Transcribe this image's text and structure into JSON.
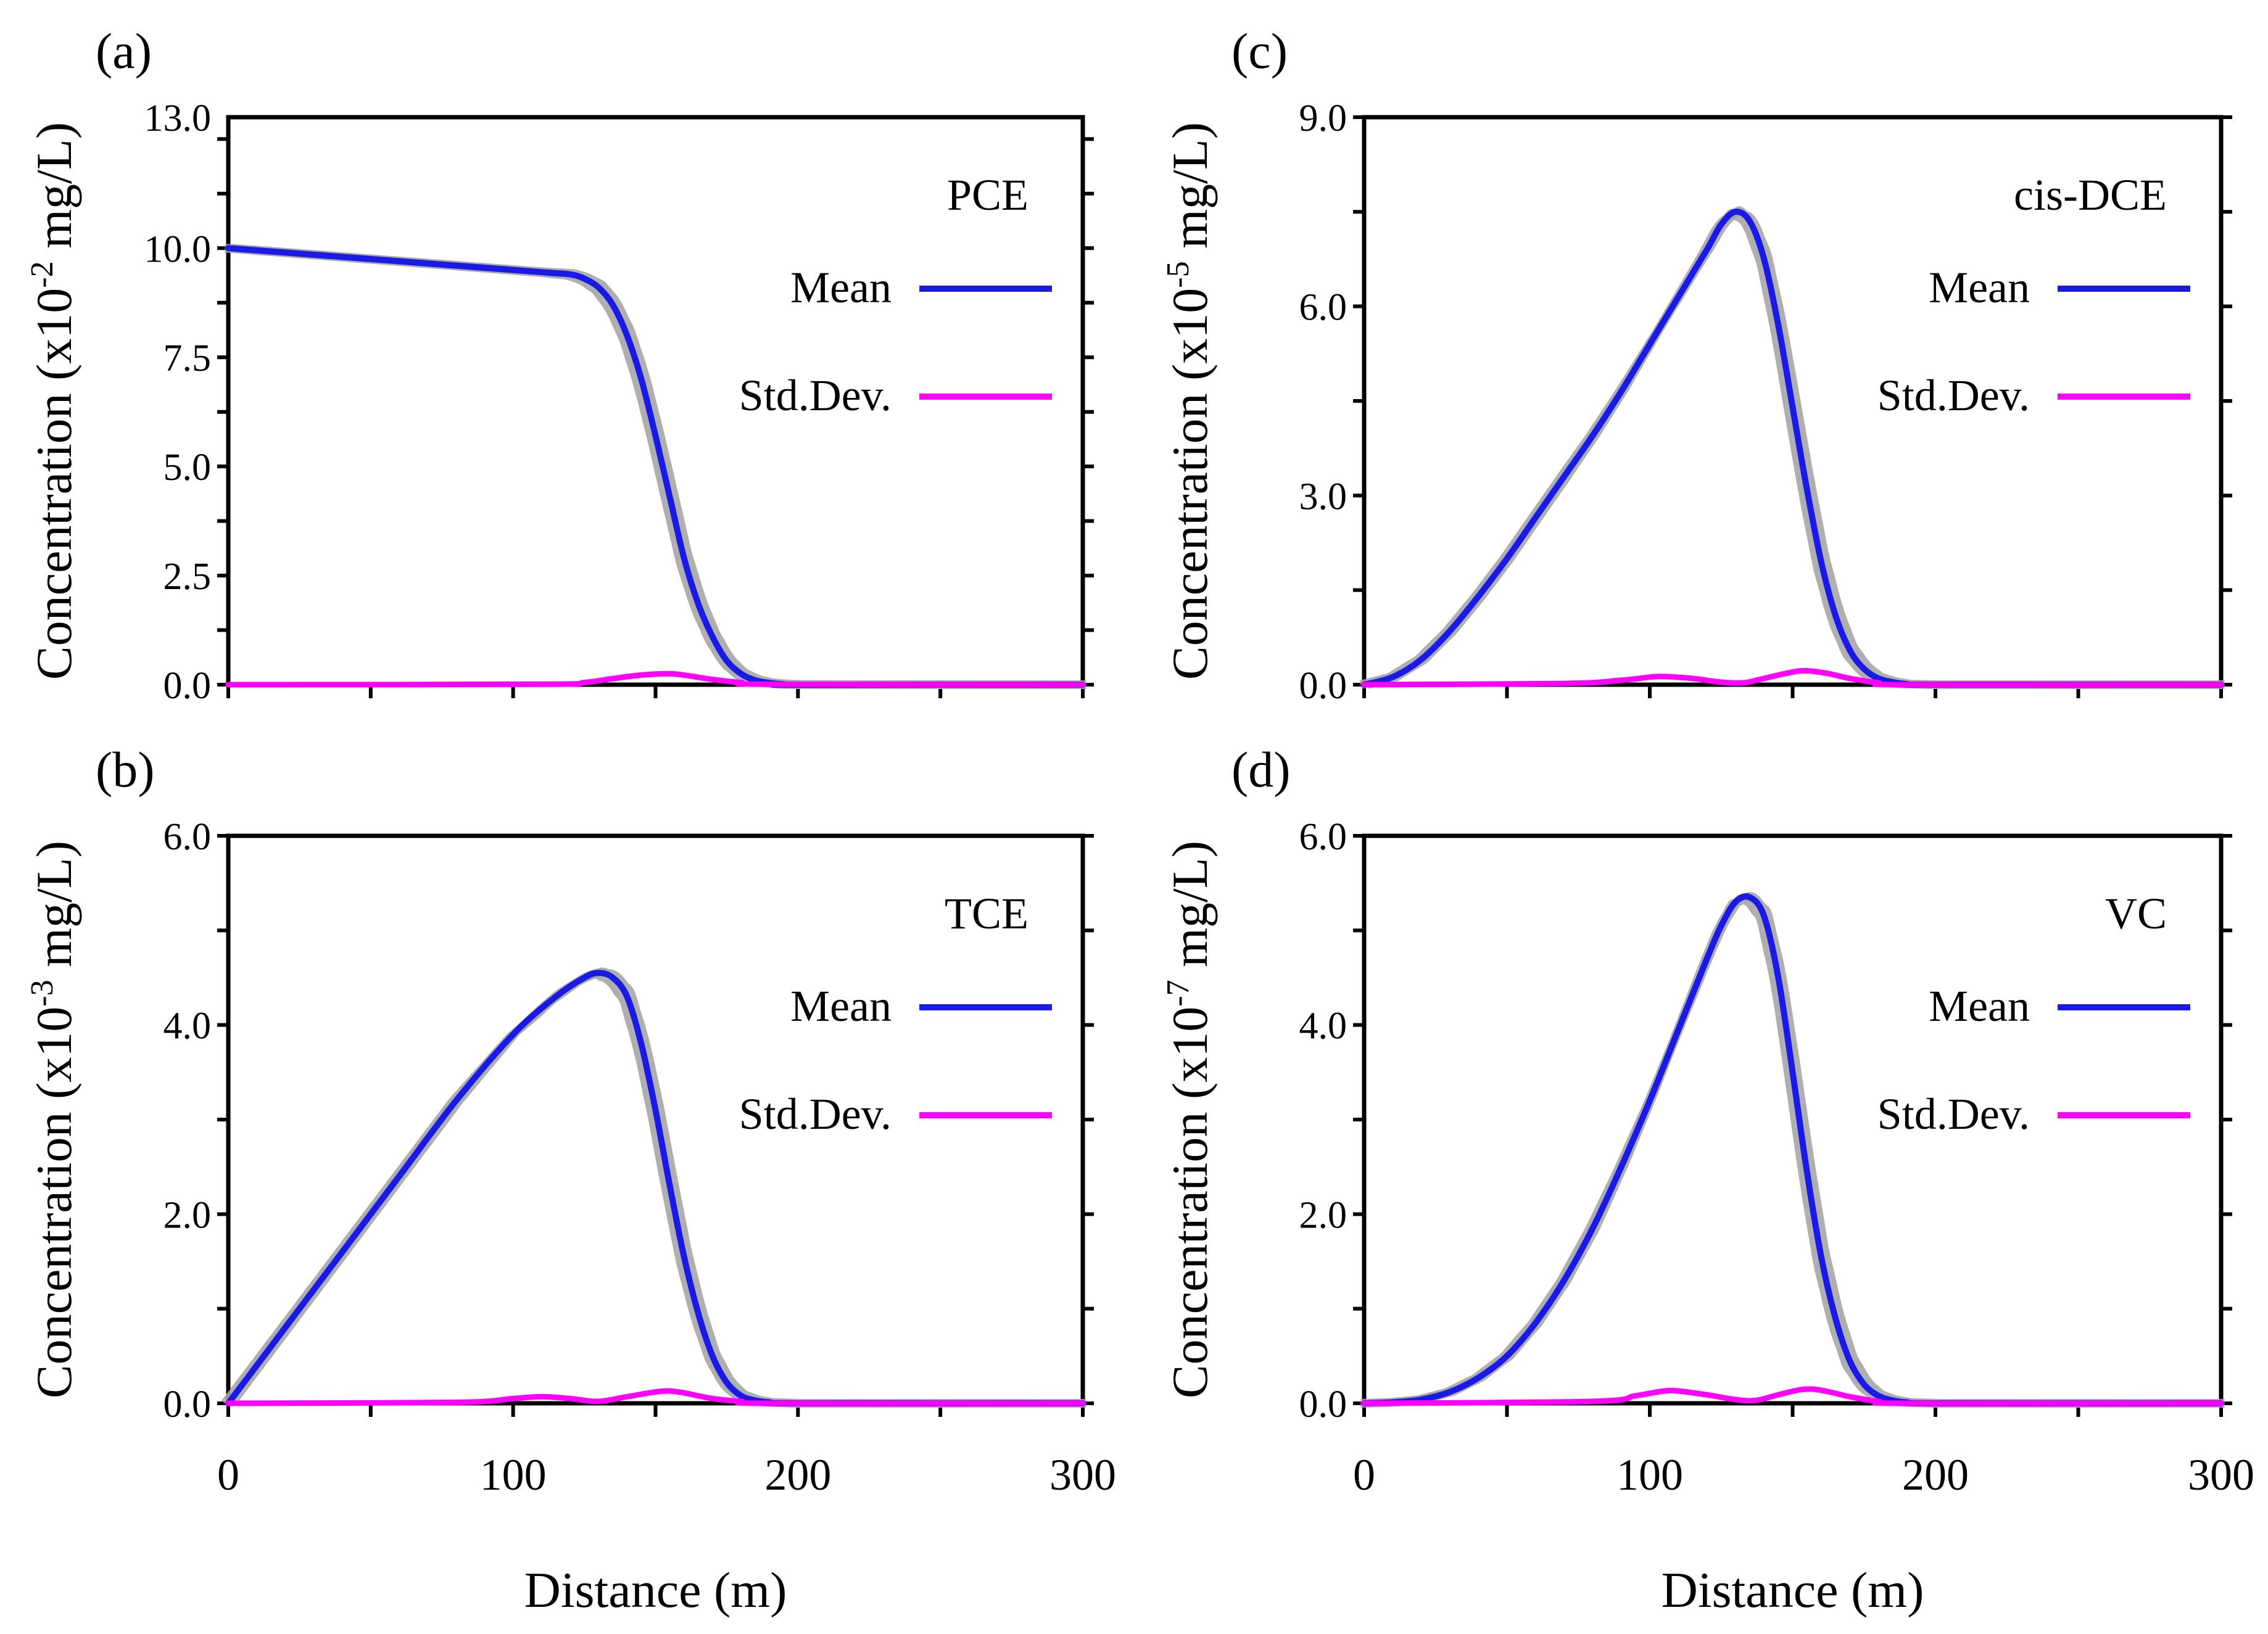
{
  "colors": {
    "mean": "#1a1ae6",
    "std_dev": "#ff00ff",
    "realizations": "#a6a6a6",
    "axis": "#000000"
  },
  "x_axis_title": "Distance (m)",
  "y_axis_title_prefix": "Concentration (x10",
  "y_axis_title_suffix": " mg/L)",
  "chart_data": [
    {
      "panel_label": "(a)",
      "type": "line",
      "species_label": "PCE",
      "y_exponent": "-2",
      "xlim": [
        0,
        300
      ],
      "ylim": [
        0,
        13
      ],
      "x_ticks": [
        "0",
        "100",
        "200",
        "300"
      ],
      "y_ticks": [
        "0.0",
        "2.5",
        "5.0",
        "7.5",
        "10.0",
        "13.0"
      ],
      "y_tick_values": [
        0,
        2.5,
        5.0,
        7.5,
        10.0,
        13.0
      ],
      "y_minor_step": 1.25,
      "x_minor_step": 50,
      "legend_position": "right",
      "series": [
        {
          "name": "Mean",
          "x": [
            0,
            60,
            110,
            120,
            125,
            130,
            135,
            140,
            145,
            150,
            155,
            160,
            165,
            170,
            175,
            180,
            185,
            190,
            195,
            200,
            300
          ],
          "y": [
            10.0,
            9.7,
            9.45,
            9.4,
            9.3,
            9.1,
            8.7,
            8.0,
            7.0,
            5.7,
            4.3,
            2.9,
            1.85,
            1.1,
            0.55,
            0.25,
            0.1,
            0.04,
            0.01,
            0.0,
            0.0
          ]
        },
        {
          "name": "Std.Dev.",
          "x": [
            0,
            110,
            125,
            135,
            145,
            155,
            162,
            170,
            180,
            190,
            300
          ],
          "y": [
            0.0,
            0.01,
            0.05,
            0.14,
            0.22,
            0.25,
            0.2,
            0.12,
            0.05,
            0.01,
            0.0
          ]
        }
      ]
    },
    {
      "panel_label": "(b)",
      "type": "line",
      "species_label": "TCE",
      "y_exponent": "-3",
      "xlim": [
        0,
        300
      ],
      "ylim": [
        0,
        6
      ],
      "x_ticks": [
        "0",
        "100",
        "200",
        "300"
      ],
      "y_ticks": [
        "0.0",
        "2.0",
        "4.0",
        "6.0"
      ],
      "y_tick_values": [
        0,
        2.0,
        4.0,
        6.0
      ],
      "y_minor_step": 1.0,
      "x_minor_step": 50,
      "legend_position": "right",
      "series": [
        {
          "name": "Mean",
          "x": [
            0,
            20,
            40,
            60,
            80,
            100,
            115,
            125,
            130,
            135,
            140,
            145,
            150,
            155,
            160,
            165,
            170,
            175,
            180,
            185,
            190,
            200,
            300
          ],
          "y": [
            0.0,
            0.8,
            1.6,
            2.4,
            3.2,
            3.9,
            4.3,
            4.5,
            4.55,
            4.5,
            4.3,
            3.8,
            3.1,
            2.3,
            1.55,
            0.95,
            0.5,
            0.22,
            0.08,
            0.03,
            0.01,
            0.0,
            0.0
          ]
        },
        {
          "name": "Std.Dev.",
          "x": [
            0,
            80,
            100,
            110,
            120,
            130,
            140,
            150,
            155,
            160,
            170,
            180,
            190,
            300
          ],
          "y": [
            0.0,
            0.01,
            0.05,
            0.07,
            0.05,
            0.02,
            0.07,
            0.12,
            0.13,
            0.11,
            0.05,
            0.02,
            0.0,
            0.0
          ]
        }
      ]
    },
    {
      "panel_label": "(c)",
      "type": "line",
      "species_label": "cis-DCE",
      "y_exponent": "-5",
      "xlim": [
        0,
        300
      ],
      "ylim": [
        0,
        9
      ],
      "x_ticks": [
        "0",
        "100",
        "200",
        "300"
      ],
      "y_ticks": [
        "0.0",
        "3.0",
        "6.0",
        "9.0"
      ],
      "y_tick_values": [
        0,
        3.0,
        6.0,
        9.0
      ],
      "y_minor_step": 1.5,
      "x_minor_step": 50,
      "legend_position": "right",
      "series": [
        {
          "name": "Mean",
          "x": [
            0,
            10,
            20,
            30,
            40,
            50,
            60,
            70,
            80,
            90,
            100,
            110,
            120,
            125,
            130,
            135,
            140,
            145,
            150,
            155,
            160,
            165,
            170,
            175,
            180,
            185,
            190,
            200,
            300
          ],
          "y": [
            0.0,
            0.12,
            0.4,
            0.85,
            1.4,
            2.0,
            2.65,
            3.3,
            3.95,
            4.65,
            5.4,
            6.15,
            6.9,
            7.3,
            7.5,
            7.35,
            6.75,
            5.7,
            4.4,
            3.1,
            1.95,
            1.1,
            0.55,
            0.25,
            0.1,
            0.04,
            0.01,
            0.0,
            0.0
          ]
        },
        {
          "name": "Std.Dev.",
          "x": [
            0,
            70,
            90,
            100,
            105,
            115,
            125,
            133,
            140,
            150,
            155,
            162,
            170,
            180,
            190,
            300
          ],
          "y": [
            0.0,
            0.02,
            0.07,
            0.12,
            0.13,
            0.1,
            0.04,
            0.03,
            0.1,
            0.2,
            0.22,
            0.18,
            0.1,
            0.03,
            0.0,
            0.0
          ]
        }
      ]
    },
    {
      "panel_label": "(d)",
      "type": "line",
      "species_label": "VC",
      "y_exponent": "-7",
      "xlim": [
        0,
        300
      ],
      "ylim": [
        0,
        6
      ],
      "x_ticks": [
        "0",
        "100",
        "200",
        "300"
      ],
      "y_ticks": [
        "0.0",
        "2.0",
        "4.0",
        "6.0"
      ],
      "y_tick_values": [
        0,
        2.0,
        4.0,
        6.0
      ],
      "y_minor_step": 1.0,
      "x_minor_step": 50,
      "legend_position": "right",
      "series": [
        {
          "name": "Mean",
          "x": [
            0,
            10,
            20,
            30,
            40,
            50,
            60,
            70,
            80,
            90,
            100,
            110,
            120,
            125,
            130,
            135,
            140,
            145,
            150,
            155,
            160,
            165,
            170,
            175,
            180,
            185,
            190,
            200,
            300
          ],
          "y": [
            0.0,
            0.01,
            0.04,
            0.12,
            0.27,
            0.5,
            0.85,
            1.3,
            1.85,
            2.5,
            3.2,
            3.95,
            4.7,
            5.05,
            5.3,
            5.35,
            5.15,
            4.5,
            3.5,
            2.45,
            1.55,
            0.9,
            0.45,
            0.2,
            0.08,
            0.03,
            0.01,
            0.0,
            0.0
          ]
        },
        {
          "name": "Std.Dev.",
          "x": [
            0,
            80,
            95,
            105,
            110,
            120,
            130,
            137,
            145,
            152,
            157,
            163,
            170,
            180,
            190,
            300
          ],
          "y": [
            0.0,
            0.02,
            0.08,
            0.13,
            0.13,
            0.09,
            0.04,
            0.03,
            0.09,
            0.14,
            0.15,
            0.12,
            0.07,
            0.02,
            0.0,
            0.0
          ]
        }
      ]
    }
  ]
}
